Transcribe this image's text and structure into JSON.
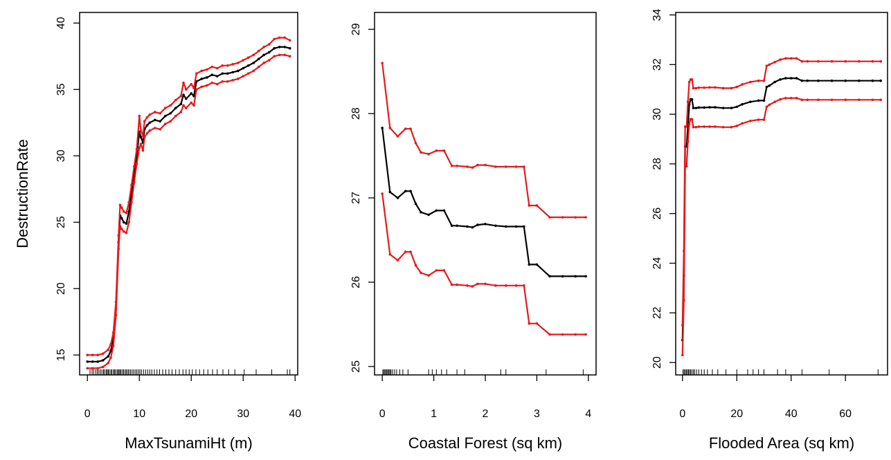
{
  "colors": {
    "fit": "#000000",
    "band": "#e31a1c"
  },
  "chart_data": [
    {
      "type": "line",
      "xlabel": "MaxTsunamiHt (m)",
      "ylabel": "DestructionRate",
      "xlim": [
        -1.5,
        40.5
      ],
      "ylim": [
        13.5,
        40.8
      ],
      "xticks": [
        0,
        10,
        20,
        30,
        40
      ],
      "yticks": [
        15,
        20,
        25,
        30,
        35,
        40
      ],
      "x": [
        0,
        1,
        2,
        3,
        4,
        4.5,
        5,
        5.5,
        6,
        6.3,
        6.6,
        7,
        7.5,
        8,
        8.5,
        9,
        9.5,
        10,
        10.3,
        10.7,
        11,
        11.5,
        12,
        13,
        14,
        15,
        16,
        17,
        18,
        18.5,
        19,
        20,
        20.5,
        21,
        22,
        23,
        24,
        25,
        26,
        27,
        28,
        29,
        30,
        31,
        32,
        33,
        34,
        35,
        36,
        37,
        38,
        39
      ],
      "series": [
        {
          "role": "fit",
          "values": [
            14.5,
            14.5,
            14.5,
            14.6,
            14.9,
            15.3,
            16.2,
            18.5,
            23.5,
            25.5,
            25.3,
            25.0,
            24.9,
            25.8,
            27.2,
            28.6,
            30.0,
            31.8,
            31.4,
            31.0,
            32.0,
            32.3,
            32.5,
            32.7,
            32.6,
            33.0,
            33.2,
            33.6,
            33.9,
            34.6,
            34.3,
            34.7,
            34.5,
            35.6,
            35.8,
            35.9,
            36.1,
            36.0,
            36.2,
            36.2,
            36.3,
            36.4,
            36.6,
            36.8,
            37.0,
            37.3,
            37.6,
            37.8,
            38.1,
            38.2,
            38.2,
            38.1
          ]
        },
        {
          "role": "upper",
          "values": [
            15.0,
            15.0,
            15.0,
            15.1,
            15.4,
            15.8,
            16.7,
            19.0,
            24.0,
            26.3,
            26.1,
            25.8,
            25.7,
            26.5,
            27.8,
            29.2,
            30.5,
            33.0,
            31.9,
            31.5,
            32.6,
            32.9,
            33.1,
            33.3,
            33.2,
            33.6,
            33.8,
            34.2,
            34.5,
            35.5,
            35.0,
            35.4,
            35.1,
            36.2,
            36.4,
            36.5,
            36.7,
            36.6,
            36.8,
            36.8,
            36.9,
            37.0,
            37.2,
            37.4,
            37.6,
            37.9,
            38.2,
            38.4,
            38.8,
            38.9,
            38.9,
            38.7
          ]
        },
        {
          "role": "lower",
          "values": [
            14.0,
            14.0,
            14.0,
            14.1,
            14.4,
            14.8,
            15.7,
            18.0,
            23.0,
            24.7,
            24.5,
            24.3,
            24.2,
            25.0,
            26.5,
            28.0,
            29.4,
            30.6,
            30.9,
            30.4,
            31.4,
            31.7,
            31.9,
            32.1,
            32.0,
            32.4,
            32.6,
            33.0,
            33.3,
            33.8,
            33.6,
            34.0,
            33.8,
            35.0,
            35.2,
            35.3,
            35.5,
            35.4,
            35.6,
            35.6,
            35.7,
            35.8,
            36.0,
            36.2,
            36.4,
            36.7,
            37.0,
            37.2,
            37.5,
            37.6,
            37.6,
            37.5
          ]
        }
      ],
      "rug": [
        0.5,
        0.9,
        1.2,
        1.6,
        1.9,
        2.2,
        2.5,
        2.8,
        3.1,
        3.3,
        3.6,
        3.8,
        4.0,
        4.2,
        4.5,
        4.7,
        5.0,
        5.2,
        5.4,
        5.7,
        5.9,
        6.1,
        6.3,
        6.5,
        6.8,
        7.0,
        7.3,
        7.5,
        7.8,
        8.0,
        8.3,
        8.6,
        8.9,
        9.2,
        9.5,
        9.8,
        10.1,
        10.4,
        10.8,
        11.2,
        11.6,
        12.0,
        12.4,
        12.9,
        13.4,
        13.9,
        14.5,
        15.1,
        15.7,
        16.3,
        17.0,
        17.7,
        18.4,
        19.0,
        19.6,
        20.2,
        20.9,
        21.6,
        22.4,
        23.2,
        24.1,
        25.0,
        26.1,
        27.2,
        28.4,
        30.2,
        32.5,
        35.5,
        38.5,
        39.0
      ]
    },
    {
      "type": "line",
      "xlabel": "Coastal Forest (sq km)",
      "ylabel": "",
      "xlim": [
        -0.15,
        4.15
      ],
      "ylim": [
        24.9,
        29.2
      ],
      "xticks": [
        0,
        1,
        2,
        3,
        4
      ],
      "yticks": [
        25,
        26,
        27,
        28,
        29
      ],
      "x": [
        0,
        0.15,
        0.3,
        0.45,
        0.55,
        0.65,
        0.75,
        0.9,
        1.05,
        1.2,
        1.35,
        1.45,
        1.65,
        1.75,
        1.85,
        2.0,
        2.2,
        2.4,
        2.6,
        2.75,
        2.85,
        3.0,
        3.25,
        3.5,
        3.75,
        3.95
      ],
      "series": [
        {
          "role": "fit",
          "values": [
            27.83,
            27.07,
            27.0,
            27.08,
            27.08,
            26.93,
            26.83,
            26.8,
            26.85,
            26.85,
            26.67,
            26.67,
            26.66,
            26.65,
            26.68,
            26.69,
            26.67,
            26.66,
            26.66,
            26.66,
            26.21,
            26.21,
            26.07,
            26.07,
            26.07,
            26.07
          ]
        },
        {
          "role": "upper",
          "values": [
            28.6,
            27.83,
            27.73,
            27.82,
            27.82,
            27.65,
            27.54,
            27.52,
            27.56,
            27.56,
            27.38,
            27.38,
            27.37,
            27.36,
            27.39,
            27.39,
            27.37,
            27.37,
            27.37,
            27.37,
            26.91,
            26.91,
            26.77,
            26.77,
            26.77,
            26.77
          ]
        },
        {
          "role": "lower",
          "values": [
            27.05,
            26.33,
            26.26,
            26.36,
            26.36,
            26.2,
            26.11,
            26.08,
            26.14,
            26.14,
            25.97,
            25.97,
            25.96,
            25.95,
            25.98,
            25.98,
            25.96,
            25.96,
            25.96,
            25.96,
            25.51,
            25.51,
            25.38,
            25.38,
            25.38,
            25.38
          ]
        }
      ],
      "rug": [
        0.01,
        0.03,
        0.05,
        0.07,
        0.09,
        0.11,
        0.13,
        0.15,
        0.17,
        0.2,
        0.24,
        0.28,
        0.34,
        0.4,
        0.5,
        0.9,
        0.97,
        1.05,
        1.15,
        1.25,
        1.45,
        1.6,
        2.3,
        2.4,
        3.18,
        3.9
      ]
    },
    {
      "type": "line",
      "xlabel": "Flooded Area (sq km)",
      "ylabel": "",
      "xlim": [
        -2.5,
        75.5
      ],
      "ylim": [
        19.5,
        34.1
      ],
      "xticks": [
        0,
        20,
        40,
        60
      ],
      "yticks": [
        20,
        22,
        24,
        26,
        28,
        30,
        32,
        34
      ],
      "x": [
        0,
        0.5,
        1,
        1.5,
        2,
        2.5,
        3,
        3.5,
        4,
        5,
        6,
        8,
        10,
        12,
        15,
        18,
        20,
        22,
        25,
        28,
        30,
        31,
        32,
        34,
        36,
        38,
        40,
        42,
        44,
        46,
        50,
        55,
        60,
        65,
        70,
        73
      ],
      "series": [
        {
          "role": "fit",
          "values": [
            20.9,
            23.5,
            28.7,
            28.7,
            29.5,
            30.4,
            30.6,
            30.6,
            30.25,
            30.25,
            30.27,
            30.27,
            30.28,
            30.28,
            30.25,
            30.25,
            30.3,
            30.4,
            30.5,
            30.55,
            30.55,
            31.1,
            31.15,
            31.3,
            31.4,
            31.45,
            31.45,
            31.45,
            31.35,
            31.35,
            31.35,
            31.35,
            31.35,
            31.35,
            31.35,
            31.35
          ]
        },
        {
          "role": "upper",
          "values": [
            21.5,
            24.5,
            29.5,
            29.5,
            30.5,
            31.3,
            31.4,
            31.4,
            31.05,
            31.05,
            31.07,
            31.07,
            31.08,
            31.08,
            31.05,
            31.05,
            31.1,
            31.2,
            31.3,
            31.35,
            31.35,
            31.95,
            32.0,
            32.1,
            32.2,
            32.25,
            32.25,
            32.25,
            32.13,
            32.13,
            32.13,
            32.13,
            32.13,
            32.13,
            32.13,
            32.13
          ]
        },
        {
          "role": "lower",
          "values": [
            20.3,
            22.5,
            27.9,
            27.9,
            28.9,
            29.6,
            29.8,
            29.8,
            29.48,
            29.48,
            29.5,
            29.5,
            29.5,
            29.5,
            29.48,
            29.48,
            29.53,
            29.63,
            29.73,
            29.78,
            29.78,
            30.3,
            30.38,
            30.5,
            30.6,
            30.65,
            30.65,
            30.65,
            30.58,
            30.58,
            30.58,
            30.58,
            30.58,
            30.58,
            30.58,
            30.58
          ]
        }
      ],
      "rug": [
        0.2,
        0.6,
        1.0,
        1.4,
        1.8,
        2.2,
        2.6,
        3.0,
        3.5,
        4.0,
        4.5,
        5.2,
        6.0,
        7.0,
        8.0,
        9.2,
        11.0,
        13.0,
        16.0,
        20.0,
        24.0,
        26.0,
        28.0,
        30.0,
        35.0,
        38.0,
        44.0,
        54.0,
        72.0
      ]
    }
  ]
}
